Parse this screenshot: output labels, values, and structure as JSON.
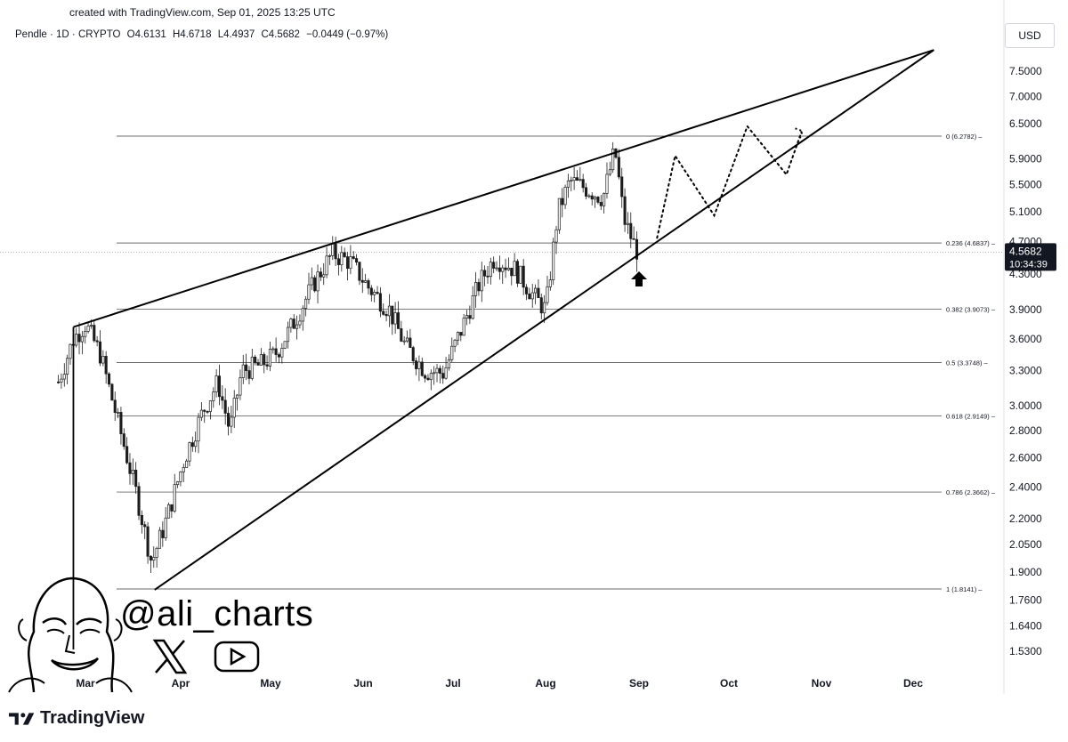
{
  "header": {
    "created": "created with TradingView.com, Sep 01, 2025 13:25 UTC",
    "symbol": "Pendle · 1D · CRYPTO",
    "open": "O4.6131",
    "high": "H4.6718",
    "low": "L4.4937",
    "close": "C4.5682",
    "change": "−0.0449 (−0.97%)"
  },
  "currency": "USD",
  "price_tag": {
    "price": "4.5682",
    "countdown": "10:34:39"
  },
  "brand": "TradingView",
  "watermark": {
    "handle": "@ali_charts"
  },
  "chart_data": {
    "type": "candlestick",
    "title": "Pendle · 1D · CRYPTO",
    "log_scale": true,
    "grid": false,
    "x_tick_labels": [
      "Mar",
      "Apr",
      "May",
      "Jun",
      "Jul",
      "Aug",
      "Sep",
      "Oct",
      "Nov",
      "Dec"
    ],
    "y_tick_labels": [
      "7.5000",
      "7.0000",
      "6.5000",
      "5.9000",
      "5.5000",
      "5.1000",
      "4.7000",
      "4.3000",
      "3.9000",
      "3.6000",
      "3.3000",
      "3.0000",
      "2.8000",
      "2.6000",
      "2.4000",
      "2.2000",
      "2.0500",
      "1.9000",
      "1.7600",
      "1.6400",
      "1.5300"
    ],
    "current_price": 4.5682,
    "fibonacci_levels": [
      {
        "label": "0 (6.2782)",
        "value": 6.2782
      },
      {
        "label": "0.236 (4.6837)",
        "value": 4.6837
      },
      {
        "label": "0.382 (3.9073)",
        "value": 3.9073
      },
      {
        "label": "0.5 (3.3748)",
        "value": 3.3748
      },
      {
        "label": "0.618 (2.9149)",
        "value": 2.9149
      },
      {
        "label": "0.786 (2.3662)",
        "value": 2.3662
      },
      {
        "label": "1 (1.8141)",
        "value": 1.8141
      }
    ],
    "price_path": [
      [
        "2025-02-20",
        3.2
      ],
      [
        "2025-02-25",
        3.6
      ],
      [
        "2025-03-01",
        3.75
      ],
      [
        "2025-03-06",
        3.45
      ],
      [
        "2025-03-12",
        2.85
      ],
      [
        "2025-03-18",
        2.35
      ],
      [
        "2025-03-23",
        1.95
      ],
      [
        "2025-03-28",
        2.2
      ],
      [
        "2025-04-03",
        2.6
      ],
      [
        "2025-04-09",
        2.95
      ],
      [
        "2025-04-14",
        3.2
      ],
      [
        "2025-04-18",
        2.8
      ],
      [
        "2025-04-22",
        3.3
      ],
      [
        "2025-04-28",
        3.35
      ],
      [
        "2025-05-03",
        3.45
      ],
      [
        "2025-05-09",
        3.75
      ],
      [
        "2025-05-16",
        4.2
      ],
      [
        "2025-05-22",
        4.55
      ],
      [
        "2025-05-28",
        4.45
      ],
      [
        "2025-06-03",
        4.15
      ],
      [
        "2025-06-10",
        3.9
      ],
      [
        "2025-06-15",
        3.55
      ],
      [
        "2025-06-22",
        3.3
      ],
      [
        "2025-06-28",
        3.28
      ],
      [
        "2025-07-04",
        3.7
      ],
      [
        "2025-07-10",
        4.2
      ],
      [
        "2025-07-15",
        4.5
      ],
      [
        "2025-07-22",
        4.35
      ],
      [
        "2025-07-28",
        4.05
      ],
      [
        "2025-08-01",
        3.9
      ],
      [
        "2025-08-05",
        5.1
      ],
      [
        "2025-08-09",
        5.55
      ],
      [
        "2025-08-14",
        5.45
      ],
      [
        "2025-08-20",
        5.3
      ],
      [
        "2025-08-24",
        6.05
      ],
      [
        "2025-08-27",
        5.0
      ],
      [
        "2025-08-31",
        4.6
      ],
      [
        "2025-09-01",
        4.5682
      ]
    ],
    "wedge_lines": [
      {
        "name": "upper",
        "points": [
          [
            "2025-02-25",
            3.72
          ],
          [
            "2025-12-08",
            7.95
          ]
        ]
      },
      {
        "name": "lower",
        "points": [
          [
            "2025-03-24",
            1.81
          ],
          [
            "2025-12-08",
            7.95
          ]
        ]
      }
    ],
    "projection": [
      [
        "2025-09-07",
        4.75
      ],
      [
        "2025-09-13",
        5.95
      ],
      [
        "2025-09-26",
        5.05
      ],
      [
        "2025-10-07",
        6.45
      ],
      [
        "2025-10-20",
        5.65
      ],
      [
        "2025-10-25",
        6.35
      ]
    ]
  },
  "colors": {
    "candle_up": "#1c1c1c",
    "candle_down": "#1c1c1c",
    "price_tag_bg": "#131722",
    "line": "#000000"
  }
}
